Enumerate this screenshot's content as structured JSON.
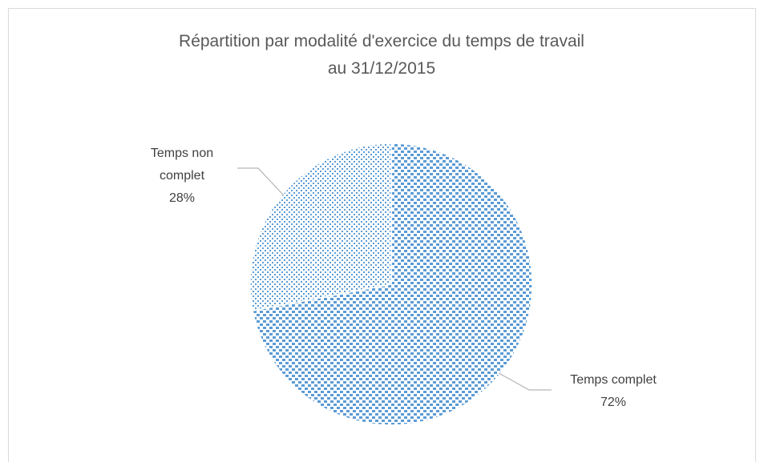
{
  "chart_data": {
    "type": "pie",
    "title": [
      "Répartition par modalité d'exercice du temps de travail",
      "au 31/12/2015"
    ],
    "categories": [
      "Temps complet",
      "Temps non complet"
    ],
    "values": [
      72,
      28
    ],
    "value_labels": [
      "72%",
      "28%"
    ],
    "colors": [
      "#5b9bd5",
      "#5b9bd5"
    ]
  }
}
